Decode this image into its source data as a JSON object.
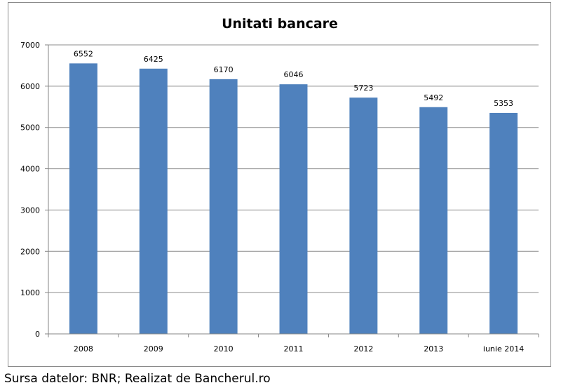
{
  "chart_data": {
    "type": "bar",
    "title": "Unitati bancare",
    "xlabel": "",
    "ylabel": "",
    "categories": [
      "2008",
      "2009",
      "2010",
      "2011",
      "2012",
      "2013",
      "iunie 2014"
    ],
    "values": [
      6552,
      6425,
      6170,
      6046,
      5723,
      5492,
      5353
    ],
    "data_labels": [
      "6552",
      "6425",
      "6170",
      "6046",
      "5723",
      "5492",
      "5353"
    ],
    "yticks": [
      0,
      1000,
      2000,
      3000,
      4000,
      5000,
      6000,
      7000
    ],
    "ylim": [
      0,
      7000
    ],
    "grid": true,
    "legend": "none",
    "bar_color": "#4f81bd",
    "gridline_color": "#8c8c8c"
  },
  "footer": {
    "source": "Sursa datelor: BNR; Realizat de Bancherul.ro"
  }
}
